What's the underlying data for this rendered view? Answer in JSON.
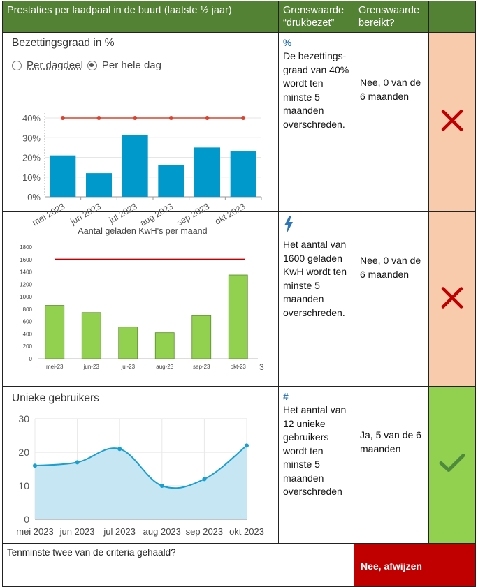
{
  "header": {
    "col1": "Prestaties per laadpaal in de buurt (laatste ½ jaar)",
    "col2": "Grenswaarde “drukbezet”",
    "col3": "Grenswaarde bereikt?"
  },
  "rows": [
    {
      "icon": "%",
      "criterion": "De bezettings-graad van 40% wordt ten minste 5 maanden overschreden.",
      "reached": "Nee, 0 van de 6 maanden",
      "status": "fail"
    },
    {
      "icon": "lightning-bolt-icon",
      "criterion": "Het aantal van 1600 geladen KwH  wordt ten minste 5 maanden overschreden.",
      "reached": "Nee, 0 van de 6 maanden",
      "status": "fail"
    },
    {
      "icon": "#",
      "criterion": "Het aantal van 12 unieke gebruikers wordt ten minste 5 maanden overschreden",
      "reached": "Ja, 5 van de 6 maanden",
      "status": "ok"
    }
  ],
  "footer": {
    "question": "Tenminste twee van de criteria gehaald?",
    "verdict": "Nee, afwijzen"
  },
  "colors": {
    "header_green": "#548235",
    "fail_bg": "#f8cbad",
    "ok_bg": "#92d050",
    "verdict_red": "#c00000",
    "bar_blue": "#0099cc",
    "bar_green": "#92d050",
    "threshold_red": "#c00000"
  },
  "chart_data": [
    {
      "type": "bar",
      "title": "Bezettingsgraad in %",
      "radio_options": [
        {
          "label": "Per dagdeel",
          "selected": false
        },
        {
          "label": "Per hele dag",
          "selected": true
        }
      ],
      "categories": [
        "mei 2023",
        "jun 2023",
        "jul 2023",
        "aug 2023",
        "sep 2023",
        "okt 2023"
      ],
      "values": [
        21,
        12,
        31.5,
        16,
        25,
        23
      ],
      "threshold": 40,
      "yticks": [
        "0%",
        "10%",
        "20%",
        "30%",
        "40%"
      ],
      "ylim": [
        0,
        40
      ]
    },
    {
      "type": "bar",
      "title": "Aantal geladen KwH's per maand",
      "categories": [
        "mei-23",
        "jun-23",
        "jul-23",
        "aug-23",
        "sep-23",
        "okt-23"
      ],
      "values": [
        860,
        745,
        510,
        420,
        695,
        1350
      ],
      "threshold": 1600,
      "yticks": [
        "0",
        "200",
        "400",
        "600",
        "800",
        "1000",
        "1200",
        "1400",
        "1600",
        "1800"
      ],
      "ylim": [
        0,
        1800
      ],
      "stray_label": "3"
    },
    {
      "type": "area",
      "title": "Unieke gebruikers",
      "categories": [
        "mei 2023",
        "jun 2023",
        "jul 2023",
        "aug 2023",
        "sep 2023",
        "okt 2023"
      ],
      "values": [
        16,
        17,
        21,
        10,
        12,
        22
      ],
      "yticks": [
        "0",
        "10",
        "20",
        "30"
      ],
      "ylim": [
        0,
        30
      ]
    }
  ]
}
